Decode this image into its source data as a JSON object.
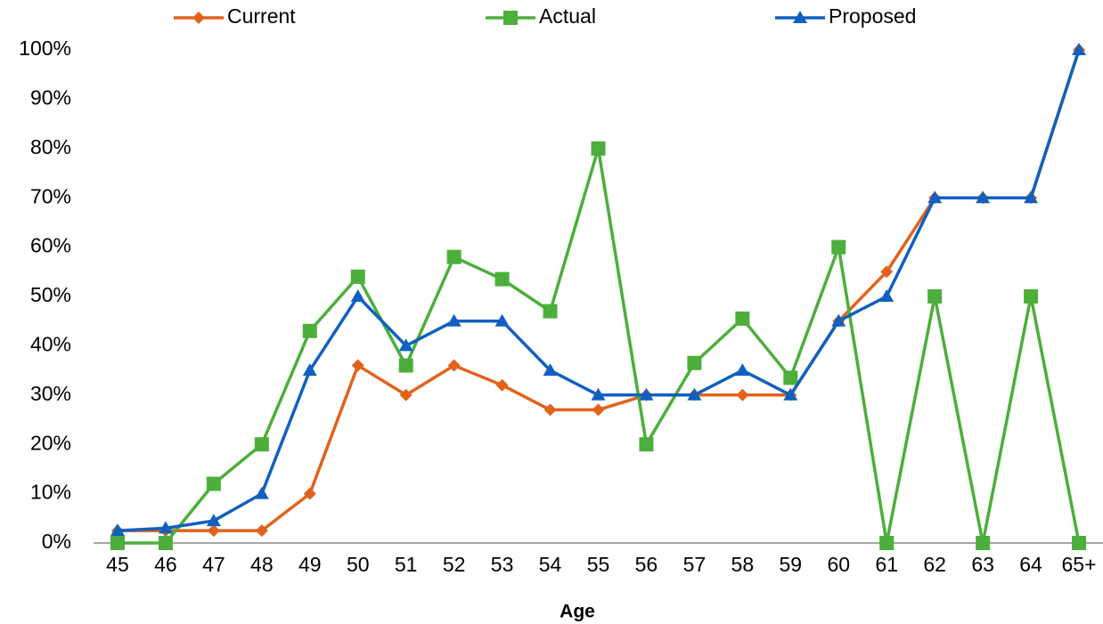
{
  "chart_data": {
    "type": "line",
    "x_label": "Age",
    "categories": [
      "45",
      "46",
      "47",
      "48",
      "49",
      "50",
      "51",
      "52",
      "53",
      "54",
      "55",
      "56",
      "57",
      "58",
      "59",
      "60",
      "61",
      "62",
      "63",
      "64",
      "65+"
    ],
    "series": [
      {
        "name": "Current",
        "color": "#e2621b",
        "marker": "diamond",
        "values": [
          2.5,
          2.5,
          2.5,
          2.5,
          10,
          36,
          30,
          36,
          32,
          27,
          27,
          30,
          30,
          30,
          30,
          45,
          55,
          70,
          70,
          70,
          100
        ]
      },
      {
        "name": "Actual",
        "color": "#4cae3b",
        "marker": "square",
        "values": [
          0,
          0,
          12,
          20,
          43,
          54,
          36,
          58,
          53.5,
          47,
          80,
          20,
          36.5,
          45.5,
          33.5,
          60,
          0,
          50,
          0,
          50,
          0
        ]
      },
      {
        "name": "Proposed",
        "color": "#1060bf",
        "marker": "triangle",
        "values": [
          2.5,
          3,
          4.5,
          10,
          35,
          50,
          40,
          45,
          45,
          35,
          30,
          30,
          30,
          35,
          30,
          45,
          50,
          70,
          70,
          70,
          100
        ]
      }
    ],
    "ylim": [
      0,
      100
    ],
    "yticks": [
      {
        "value": 0,
        "label": "0%"
      },
      {
        "value": 10,
        "label": "10%"
      },
      {
        "value": 20,
        "label": "20%"
      },
      {
        "value": 30,
        "label": "30%"
      },
      {
        "value": 40,
        "label": "40%"
      },
      {
        "value": 50,
        "label": "50%"
      },
      {
        "value": 60,
        "label": "60%"
      },
      {
        "value": 70,
        "label": "70%"
      },
      {
        "value": 80,
        "label": "80%"
      },
      {
        "value": 90,
        "label": "90%"
      },
      {
        "value": 100,
        "label": "100%"
      }
    ],
    "grid": false,
    "legend": "top"
  }
}
